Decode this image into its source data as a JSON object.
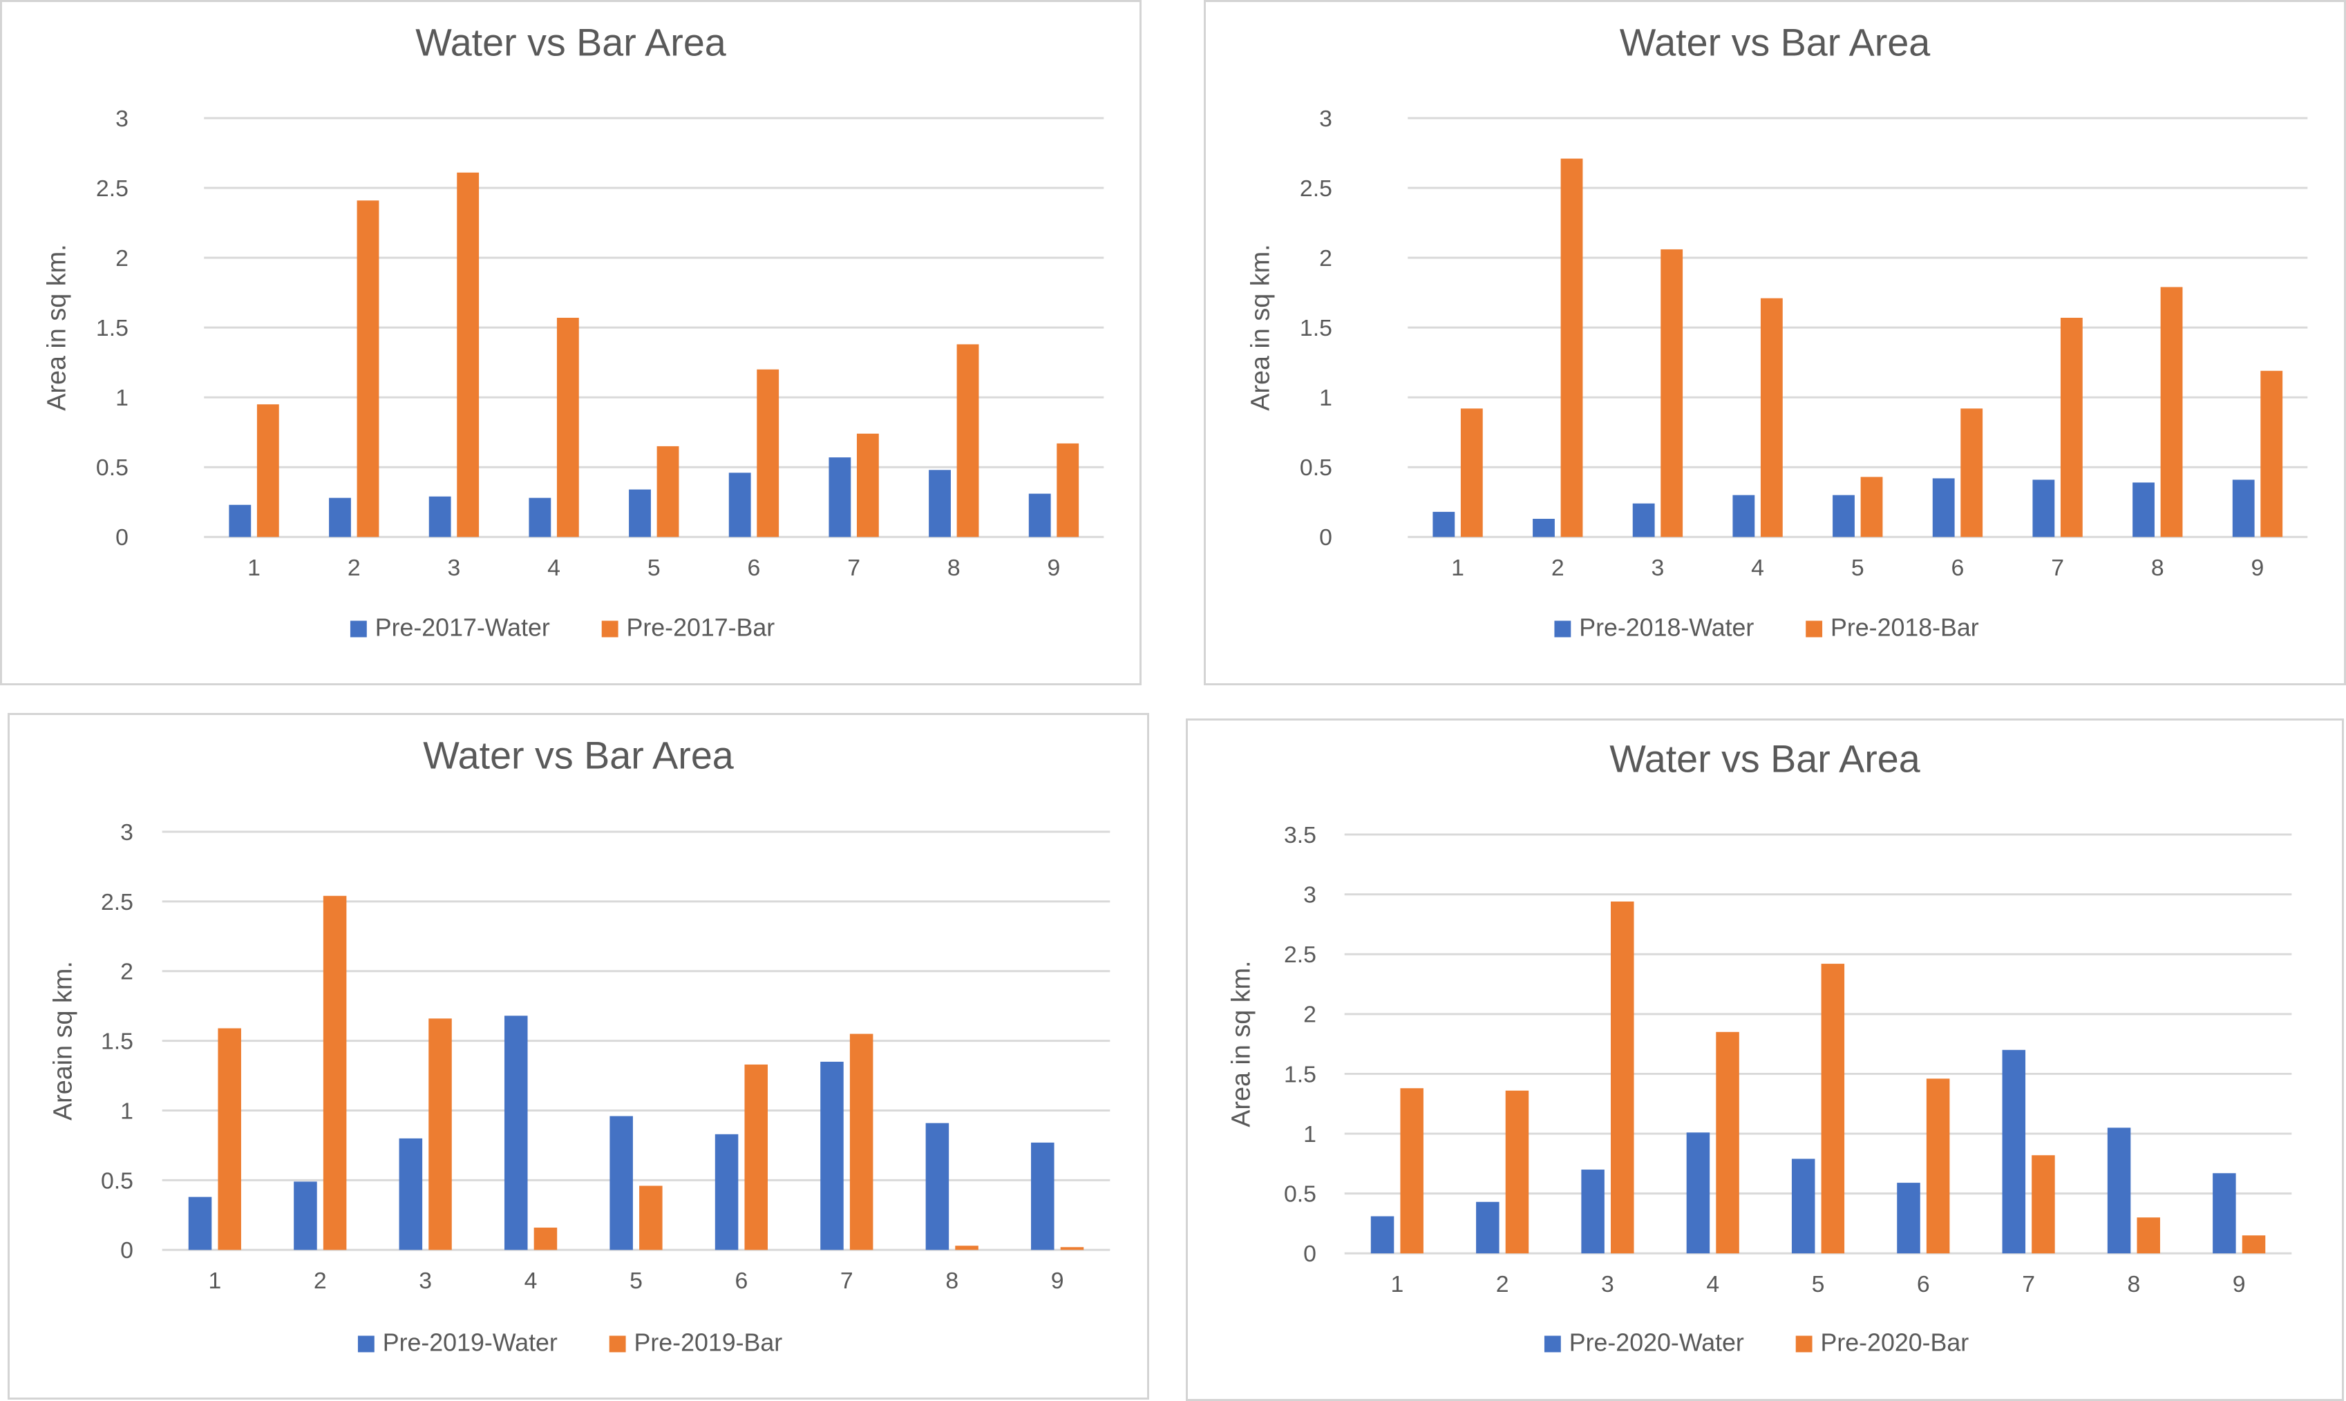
{
  "chart_data": [
    {
      "type": "bar",
      "title": "Water vs Bar Area",
      "ylabel": "Area in sq km.",
      "xlabel": "",
      "categories": [
        "1",
        "2",
        "3",
        "4",
        "5",
        "6",
        "7",
        "8",
        "9"
      ],
      "ylim": [
        0,
        3
      ],
      "yticks": [
        "0",
        "0.5",
        "1",
        "1.5",
        "2",
        "2.5",
        "3"
      ],
      "grid": true,
      "legend": "bottom",
      "series": [
        {
          "name": "Pre-2017-Water",
          "color": "#4472c4",
          "values": [
            0.23,
            0.28,
            0.29,
            0.28,
            0.34,
            0.46,
            0.57,
            0.48,
            0.31
          ]
        },
        {
          "name": "Pre-2017-Bar",
          "color": "#ed7d31",
          "values": [
            0.95,
            2.41,
            2.61,
            1.57,
            0.65,
            1.2,
            0.74,
            1.38,
            0.67
          ]
        }
      ]
    },
    {
      "type": "bar",
      "title": "Water vs Bar Area",
      "ylabel": "Area in sq km.",
      "xlabel": "",
      "categories": [
        "1",
        "2",
        "3",
        "4",
        "5",
        "6",
        "7",
        "8",
        "9"
      ],
      "ylim": [
        0,
        3
      ],
      "yticks": [
        "0",
        "0.5",
        "1",
        "1.5",
        "2",
        "2.5",
        "3"
      ],
      "grid": true,
      "legend": "bottom",
      "series": [
        {
          "name": "Pre-2018-Water",
          "color": "#4472c4",
          "values": [
            0.18,
            0.13,
            0.24,
            0.3,
            0.3,
            0.42,
            0.41,
            0.39,
            0.41
          ]
        },
        {
          "name": "Pre-2018-Bar",
          "color": "#ed7d31",
          "values": [
            0.92,
            2.71,
            2.06,
            1.71,
            0.43,
            0.92,
            1.57,
            1.79,
            1.19
          ]
        }
      ]
    },
    {
      "type": "bar",
      "title": "Water vs Bar Area",
      "ylabel": "Areain sq km.",
      "xlabel": "",
      "categories": [
        "1",
        "2",
        "3",
        "4",
        "5",
        "6",
        "7",
        "8",
        "9"
      ],
      "ylim": [
        0,
        3
      ],
      "yticks": [
        "0",
        "0.5",
        "1",
        "1.5",
        "2",
        "2.5",
        "3"
      ],
      "grid": true,
      "legend": "bottom",
      "series": [
        {
          "name": "Pre-2019-Water",
          "color": "#4472c4",
          "values": [
            0.38,
            0.49,
            0.8,
            1.68,
            0.96,
            0.83,
            1.35,
            0.91,
            0.77
          ]
        },
        {
          "name": "Pre-2019-Bar",
          "color": "#ed7d31",
          "values": [
            1.59,
            2.54,
            1.66,
            0.16,
            0.46,
            1.33,
            1.55,
            0.03,
            0.02
          ]
        }
      ]
    },
    {
      "type": "bar",
      "title": "Water vs Bar Area",
      "ylabel": "Area in sq km.",
      "xlabel": "",
      "categories": [
        "1",
        "2",
        "3",
        "4",
        "5",
        "6",
        "7",
        "8",
        "9"
      ],
      "ylim": [
        0,
        3.5
      ],
      "yticks": [
        "0",
        "0.5",
        "1",
        "1.5",
        "2",
        "2.5",
        "3",
        "3.5"
      ],
      "grid": true,
      "legend": "bottom",
      "series": [
        {
          "name": "Pre-2020-Water",
          "color": "#4472c4",
          "values": [
            0.31,
            0.43,
            0.7,
            1.01,
            0.79,
            0.59,
            1.7,
            1.05,
            0.67
          ]
        },
        {
          "name": "Pre-2020-Bar",
          "color": "#ed7d31",
          "values": [
            1.38,
            1.36,
            2.94,
            1.85,
            2.42,
            1.46,
            0.82,
            0.3,
            0.15
          ]
        }
      ]
    }
  ]
}
